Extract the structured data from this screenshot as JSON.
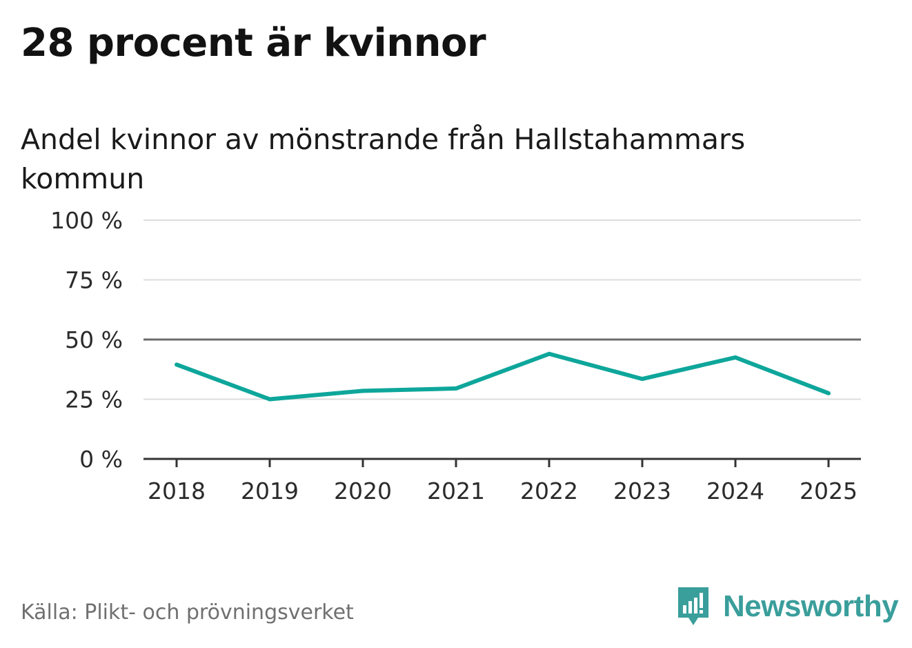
{
  "chart_data": {
    "type": "line",
    "title": "28 procent är kvinnor",
    "subtitle": "Andel kvinnor av mönstrande från Hallstahammars kommun",
    "categories": [
      "2018",
      "2019",
      "2020",
      "2021",
      "2022",
      "2023",
      "2024",
      "2025"
    ],
    "series": [
      {
        "name": "Andel kvinnor",
        "values": [
          39.5,
          25.0,
          28.5,
          29.5,
          44.0,
          33.5,
          42.5,
          27.5
        ]
      }
    ],
    "y_ticks": [
      0,
      25,
      50,
      75,
      100
    ],
    "y_tick_labels": [
      "0 %",
      "25 %",
      "50 %",
      "75 %",
      "100 %"
    ],
    "ylim": [
      0,
      100
    ],
    "reference_line": 50,
    "grid": true,
    "xlabel": "",
    "ylabel": ""
  },
  "source": "Källa: Plikt- och prövningsverket",
  "brand": {
    "name": "Newsworthy",
    "icon": "newsworthy-logo-icon"
  },
  "colors": {
    "line": "#0ea69b",
    "grid": "#dddddd",
    "reference": "#6b6b6b",
    "axis": "#333333",
    "brand": "#3a9e9b"
  }
}
